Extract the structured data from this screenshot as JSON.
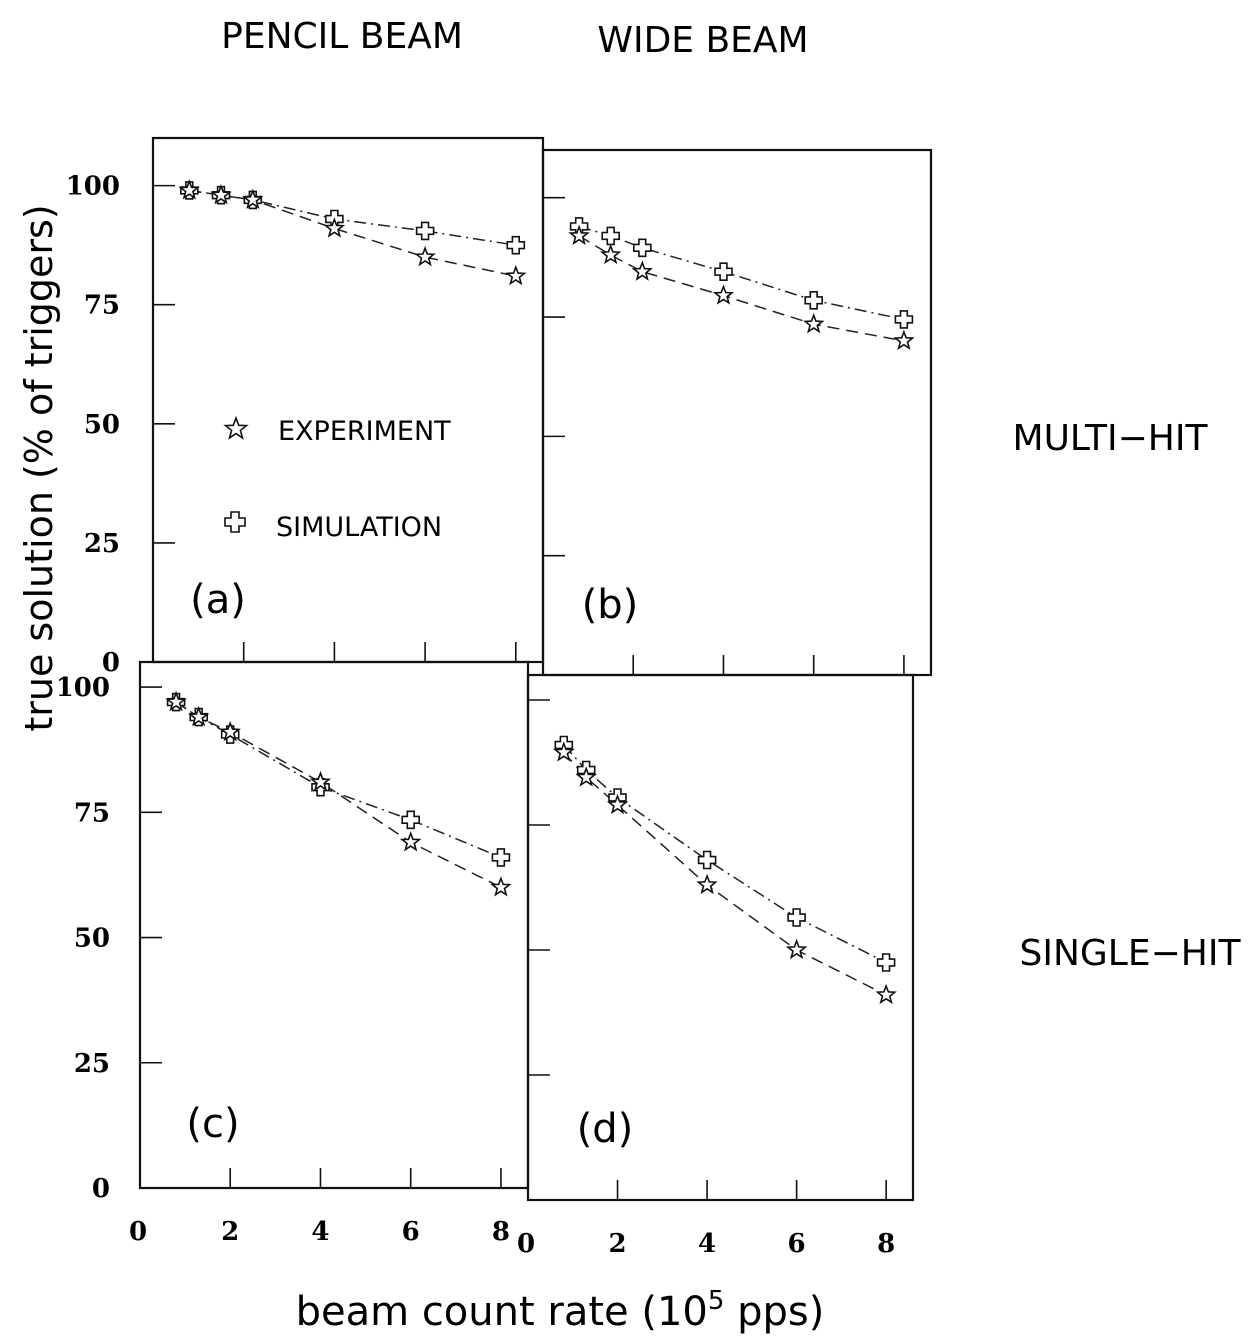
{
  "figure": {
    "column_headers": [
      "PENCIL BEAM",
      "WIDE BEAM"
    ],
    "row_labels": [
      "MULTI−HIT",
      "SINGLE−HIT"
    ],
    "ylabel": "true solution (% of triggers)",
    "xlabel_prefix": "beam count rate  (10",
    "xlabel_exp": "5",
    "xlabel_suffix": " pps)",
    "legend": [
      {
        "symbol": "star",
        "label": "EXPERIMENT"
      },
      {
        "symbol": "cross",
        "label": "SIMULATION"
      }
    ]
  },
  "chart_data": [
    {
      "type": "line",
      "panel_label": "(a)",
      "xlim": [
        0,
        8.6
      ],
      "ylim": [
        0,
        110
      ],
      "y_ticks": [
        0,
        25,
        50,
        75,
        100
      ],
      "series": [
        {
          "name": "EXPERIMENT",
          "x": [
            0.8,
            1.5,
            2.2,
            4.0,
            6.0,
            8.0
          ],
          "y": [
            99,
            98,
            97,
            91,
            85,
            81
          ]
        },
        {
          "name": "SIMULATION",
          "x": [
            0.8,
            1.5,
            2.2,
            4.0,
            6.0,
            8.0
          ],
          "y": [
            99,
            98,
            97,
            93,
            90.5,
            87.5
          ]
        }
      ]
    },
    {
      "type": "line",
      "panel_label": "(b)",
      "xlim": [
        0,
        8.6
      ],
      "ylim": [
        0,
        110
      ],
      "series": [
        {
          "name": "EXPERIMENT",
          "x": [
            0.8,
            1.5,
            2.2,
            4.0,
            6.0,
            8.0
          ],
          "y": [
            92,
            88,
            84.5,
            79.5,
            73.5,
            70
          ]
        },
        {
          "name": "SIMULATION",
          "x": [
            0.8,
            1.5,
            2.2,
            4.0,
            6.0,
            8.0
          ],
          "y": [
            94,
            92,
            89.5,
            84.5,
            78.5,
            74.5
          ]
        }
      ]
    },
    {
      "type": "line",
      "panel_label": "(c)",
      "xlim": [
        0,
        8.6
      ],
      "ylim": [
        0,
        105
      ],
      "x_ticks": [
        0,
        2,
        4,
        6,
        8
      ],
      "y_ticks": [
        0,
        25,
        50,
        75,
        100
      ],
      "series": [
        {
          "name": "EXPERIMENT",
          "x": [
            0.8,
            1.3,
            2.0,
            4.0,
            6.0,
            8.0
          ],
          "y": [
            97,
            94,
            91,
            81,
            69,
            60
          ]
        },
        {
          "name": "SIMULATION",
          "x": [
            0.8,
            1.3,
            2.0,
            4.0,
            6.0,
            8.0
          ],
          "y": [
            97,
            94,
            90.5,
            80,
            73.5,
            66
          ]
        }
      ]
    },
    {
      "type": "line",
      "panel_label": "(d)",
      "xlim": [
        0,
        8.6
      ],
      "ylim": [
        0,
        105
      ],
      "x_ticks": [
        0,
        2,
        4,
        6,
        8
      ],
      "series": [
        {
          "name": "EXPERIMENT",
          "x": [
            0.8,
            1.3,
            2.0,
            4.0,
            6.0,
            8.0
          ],
          "y": [
            89.5,
            84.5,
            79,
            63,
            50,
            41
          ]
        },
        {
          "name": "SIMULATION",
          "x": [
            0.8,
            1.3,
            2.0,
            4.0,
            6.0,
            8.0
          ],
          "y": [
            91,
            86,
            80.5,
            68,
            56.5,
            47.5
          ]
        }
      ]
    }
  ]
}
